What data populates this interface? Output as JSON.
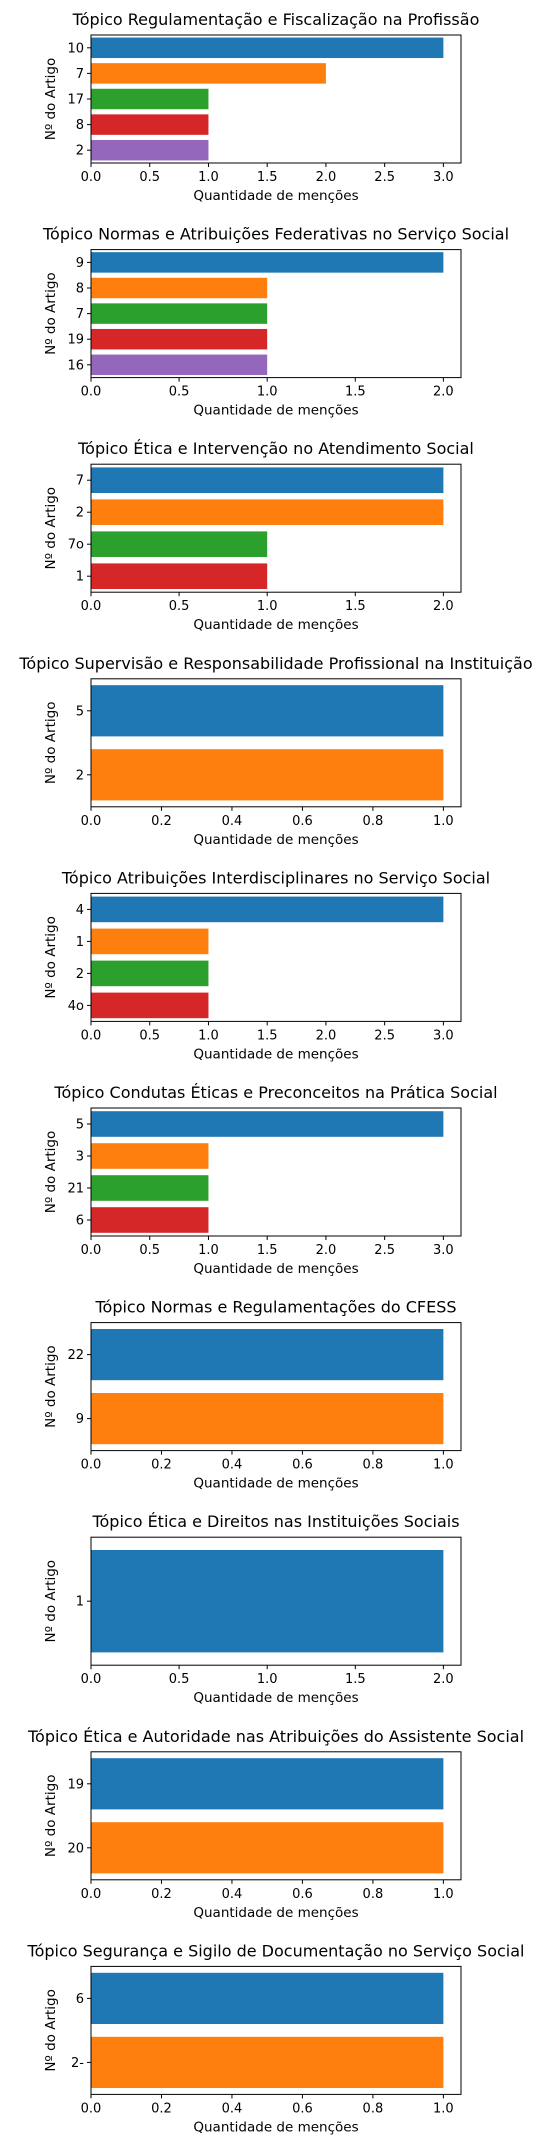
{
  "palette": [
    "#1f77b4",
    "#ff7f0e",
    "#2ca02c",
    "#d62728",
    "#9467bd"
  ],
  "chart_data": [
    {
      "type": "bar",
      "orientation": "horizontal",
      "title": "Tópico Regulamentação e Fiscalização na Profissão",
      "xlabel": "Quantidade de menções",
      "ylabel": "Nº do Artigo",
      "categories": [
        "10",
        "7",
        "17",
        "8",
        "2"
      ],
      "values": [
        3,
        2,
        1,
        1,
        1
      ],
      "xlim": [
        0,
        3.15
      ],
      "xticks": [
        "0.0",
        "0.5",
        "1.0",
        "1.5",
        "2.0",
        "2.5",
        "3.0"
      ]
    },
    {
      "type": "bar",
      "orientation": "horizontal",
      "title": "Tópico Normas e Atribuições Federativas no Serviço Social",
      "xlabel": "Quantidade de menções",
      "ylabel": "Nº do Artigo",
      "categories": [
        "9",
        "8",
        "7",
        "19",
        "16"
      ],
      "values": [
        2,
        1,
        1,
        1,
        1
      ],
      "xlim": [
        0,
        2.1
      ],
      "xticks": [
        "0.0",
        "0.5",
        "1.0",
        "1.5",
        "2.0"
      ]
    },
    {
      "type": "bar",
      "orientation": "horizontal",
      "title": "Tópico Ética e Intervenção no Atendimento Social",
      "xlabel": "Quantidade de menções",
      "ylabel": "Nº do Artigo",
      "categories": [
        "7",
        "2",
        "7o",
        "1"
      ],
      "values": [
        2,
        2,
        1,
        1
      ],
      "xlim": [
        0,
        2.1
      ],
      "xticks": [
        "0.0",
        "0.5",
        "1.0",
        "1.5",
        "2.0"
      ]
    },
    {
      "type": "bar",
      "orientation": "horizontal",
      "title": "Tópico Supervisão e Responsabilidade Profissional na Instituição",
      "xlabel": "Quantidade de menções",
      "ylabel": "Nº do Artigo",
      "categories": [
        "5",
        "2"
      ],
      "values": [
        1,
        1
      ],
      "xlim": [
        0,
        1.05
      ],
      "xticks": [
        "0.0",
        "0.2",
        "0.4",
        "0.6",
        "0.8",
        "1.0"
      ]
    },
    {
      "type": "bar",
      "orientation": "horizontal",
      "title": "Tópico Atribuições Interdisciplinares no Serviço Social",
      "xlabel": "Quantidade de menções",
      "ylabel": "Nº do Artigo",
      "categories": [
        "4",
        "1",
        "2",
        "4o"
      ],
      "values": [
        3,
        1,
        1,
        1
      ],
      "xlim": [
        0,
        3.15
      ],
      "xticks": [
        "0.0",
        "0.5",
        "1.0",
        "1.5",
        "2.0",
        "2.5",
        "3.0"
      ]
    },
    {
      "type": "bar",
      "orientation": "horizontal",
      "title": "Tópico Condutas Éticas e Preconceitos na Prática Social",
      "xlabel": "Quantidade de menções",
      "ylabel": "Nº do Artigo",
      "categories": [
        "5",
        "3",
        "21",
        "6"
      ],
      "values": [
        3,
        1,
        1,
        1
      ],
      "xlim": [
        0,
        3.15
      ],
      "xticks": [
        "0.0",
        "0.5",
        "1.0",
        "1.5",
        "2.0",
        "2.5",
        "3.0"
      ]
    },
    {
      "type": "bar",
      "orientation": "horizontal",
      "title": "Tópico Normas e Regulamentações do CFESS",
      "xlabel": "Quantidade de menções",
      "ylabel": "Nº do Artigo",
      "categories": [
        "22",
        "9"
      ],
      "values": [
        1,
        1
      ],
      "xlim": [
        0,
        1.05
      ],
      "xticks": [
        "0.0",
        "0.2",
        "0.4",
        "0.6",
        "0.8",
        "1.0"
      ]
    },
    {
      "type": "bar",
      "orientation": "horizontal",
      "title": "Tópico Ética e Direitos nas Instituições Sociais",
      "xlabel": "Quantidade de menções",
      "ylabel": "Nº do Artigo",
      "categories": [
        "1"
      ],
      "values": [
        2
      ],
      "xlim": [
        0,
        2.1
      ],
      "xticks": [
        "0.0",
        "0.5",
        "1.0",
        "1.5",
        "2.0"
      ]
    },
    {
      "type": "bar",
      "orientation": "horizontal",
      "title": "Tópico Ética e Autoridade nas Atribuições do Assistente Social",
      "xlabel": "Quantidade de menções",
      "ylabel": "Nº do Artigo",
      "categories": [
        "19",
        "20"
      ],
      "values": [
        1,
        1
      ],
      "xlim": [
        0,
        1.05
      ],
      "xticks": [
        "0.0",
        "0.2",
        "0.4",
        "0.6",
        "0.8",
        "1.0"
      ]
    },
    {
      "type": "bar",
      "orientation": "horizontal",
      "title": "Tópico Segurança e Sigilo de Documentação no Serviço Social",
      "xlabel": "Quantidade de menções",
      "ylabel": "Nº do Artigo",
      "categories": [
        "6",
        "2-"
      ],
      "values": [
        1,
        1
      ],
      "xlim": [
        0,
        1.05
      ],
      "xticks": [
        "0.0",
        "0.2",
        "0.4",
        "0.6",
        "0.8",
        "1.0"
      ]
    }
  ]
}
